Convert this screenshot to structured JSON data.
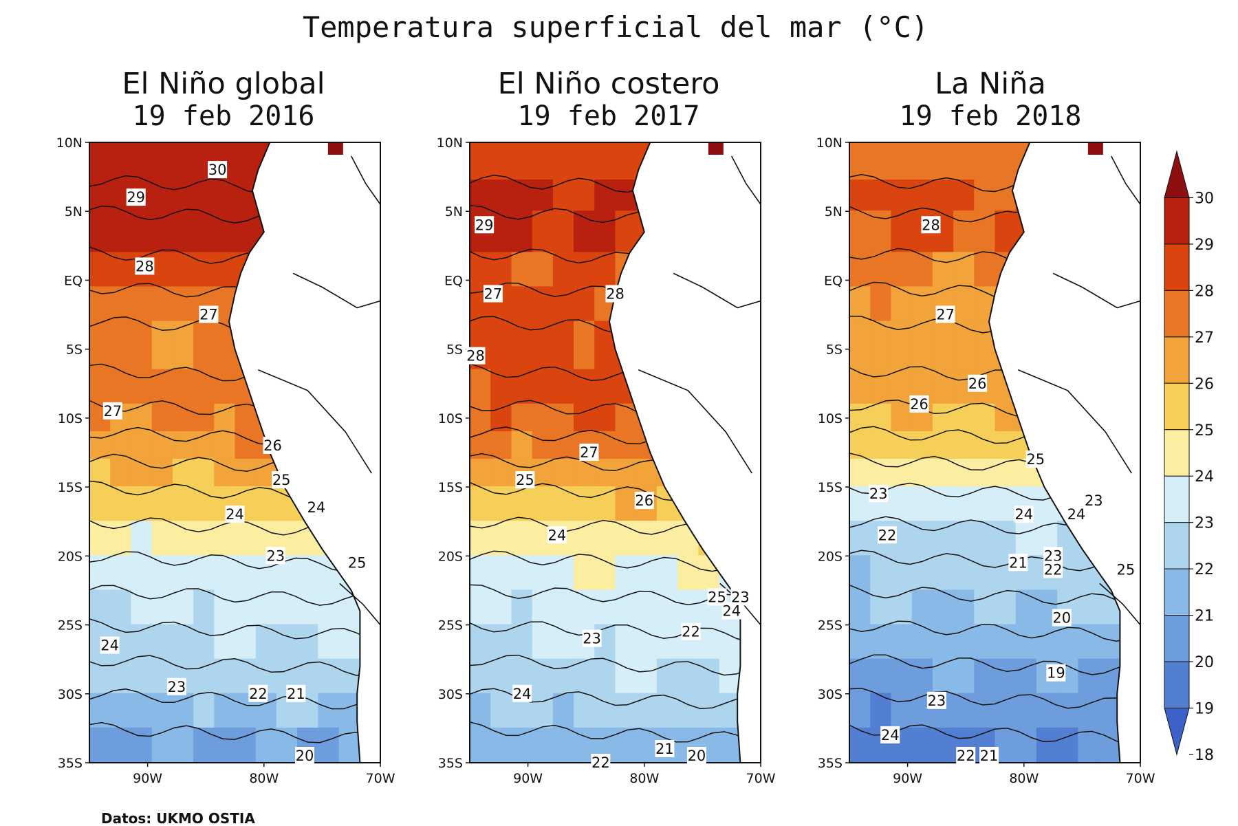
{
  "title": "Temperatura superficial del mar (°C)",
  "source": "Datos: UKMO OSTIA",
  "axes": {
    "lat_ticks": [
      "10N",
      "5N",
      "EQ",
      "5S",
      "10S",
      "15S",
      "20S",
      "25S",
      "30S",
      "35S"
    ],
    "lon_ticks": [
      "90W",
      "80W",
      "70W"
    ]
  },
  "colorbar": {
    "levels": [
      "30",
      "29",
      "28",
      "27",
      "26",
      "25",
      "24",
      "23",
      "22",
      "21",
      "20",
      "19",
      "18"
    ],
    "colors": [
      "#8e0f10",
      "#b8200f",
      "#d9440f",
      "#e97624",
      "#f2a339",
      "#f6cf58",
      "#fbeea0",
      "#d5eef7",
      "#aed5ee",
      "#89b9e6",
      "#6d9ddd",
      "#527fd2",
      "#3c61c8"
    ]
  },
  "panels": [
    {
      "title": "El Niño global",
      "date": "19 feb 2016",
      "labels": [
        "30",
        "29",
        "28",
        "27",
        "27",
        "26",
        "25",
        "24",
        "24",
        "23",
        "25",
        "24",
        "23",
        "22",
        "21",
        "20"
      ]
    },
    {
      "title": "El Niño costero",
      "date": "19 feb 2017",
      "labels": [
        "29",
        "27",
        "28",
        "28",
        "27",
        "25",
        "26",
        "24",
        "25",
        "23",
        "24",
        "22",
        "23",
        "24",
        "21",
        "20",
        "22"
      ]
    },
    {
      "title": "La Niña",
      "date": "19 feb 2018",
      "labels": [
        "28",
        "27",
        "26",
        "26",
        "25",
        "23",
        "23",
        "24",
        "24",
        "22",
        "21",
        "23",
        "22",
        "25",
        "20",
        "19",
        "23",
        "24",
        "22",
        "21"
      ]
    }
  ]
}
